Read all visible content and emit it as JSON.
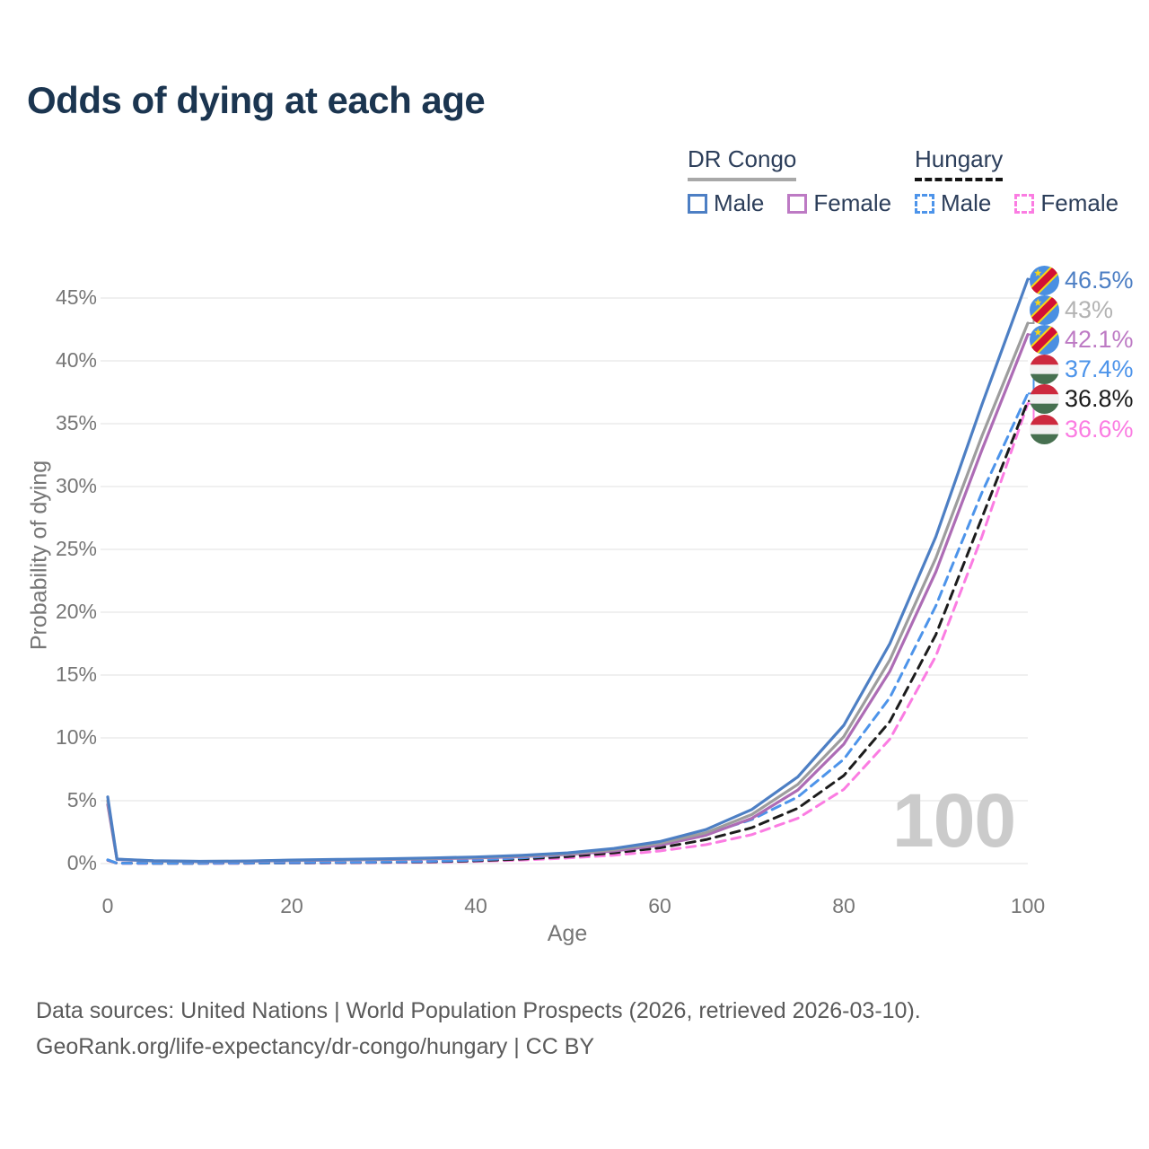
{
  "title": "Odds of dying at each age",
  "colors": {
    "title": "#1b3550",
    "legend_text": "#2c3e5a",
    "axis_text": "#767676",
    "gridline": "#ececec",
    "watermark": "#cbcbcb",
    "footer_text": "#5a5a5a"
  },
  "legend": {
    "groups": [
      {
        "title": "DR Congo",
        "underline_color": "#a8a8a8",
        "underline_style": "solid",
        "items": [
          {
            "label": "Male",
            "color": "#4d7fc4",
            "dashed": false
          },
          {
            "label": "Female",
            "color": "#bd7ac4",
            "dashed": false
          }
        ]
      },
      {
        "title": "Hungary",
        "underline_color": "#141414",
        "underline_style": "dashed",
        "items": [
          {
            "label": "Male",
            "color": "#4d94ea",
            "dashed": true
          },
          {
            "label": "Female",
            "color": "#fb7ce2",
            "dashed": true
          }
        ]
      }
    ]
  },
  "chart_data": {
    "type": "line",
    "title": "Odds of dying at each age",
    "xlabel": "Age",
    "ylabel": "Probability of dying",
    "xlim": [
      0,
      100
    ],
    "ylim": [
      0,
      47
    ],
    "grid": true,
    "legend_position": "top-right",
    "x_ticks": [
      0,
      20,
      40,
      60,
      80,
      100
    ],
    "y_ticks": [
      0,
      5,
      10,
      15,
      20,
      25,
      30,
      35,
      40,
      45
    ],
    "y_tick_suffix": "%",
    "x": [
      0,
      1,
      5,
      10,
      15,
      20,
      25,
      30,
      35,
      40,
      45,
      50,
      55,
      60,
      65,
      70,
      75,
      80,
      85,
      90,
      95,
      100
    ],
    "series": [
      {
        "id": "dr-congo-male",
        "name": "DR Congo Male",
        "flag": "dr-congo",
        "color": "#4d7fc4",
        "label_color": "#4d7fc4",
        "dashed": false,
        "end_label": "46.5%",
        "values": [
          5.3,
          0.35,
          0.22,
          0.18,
          0.2,
          0.28,
          0.33,
          0.38,
          0.44,
          0.52,
          0.65,
          0.85,
          1.2,
          1.75,
          2.7,
          4.3,
          6.9,
          11.0,
          17.5,
          26.0,
          36.5,
          46.5
        ]
      },
      {
        "id": "dr-congo-both",
        "name": "DR Congo Both sexes",
        "flag": "dr-congo",
        "color": "#9d9d9d",
        "label_color": "#b3b3b3",
        "dashed": false,
        "end_label": "43%",
        "values": [
          5.0,
          0.34,
          0.21,
          0.17,
          0.19,
          0.26,
          0.3,
          0.35,
          0.41,
          0.48,
          0.6,
          0.78,
          1.1,
          1.6,
          2.45,
          3.9,
          6.3,
          10.1,
          16.2,
          24.3,
          34.0,
          43.0
        ]
      },
      {
        "id": "dr-congo-female",
        "name": "DR Congo Female",
        "flag": "dr-congo",
        "color": "#ad6cb5",
        "label_color": "#bd7ac4",
        "dashed": false,
        "end_label": "42.1%",
        "values": [
          4.7,
          0.32,
          0.2,
          0.16,
          0.18,
          0.24,
          0.28,
          0.32,
          0.37,
          0.44,
          0.55,
          0.72,
          1.0,
          1.45,
          2.25,
          3.6,
          5.85,
          9.5,
          15.3,
          23.2,
          32.9,
          42.1
        ]
      },
      {
        "id": "hungary-male",
        "name": "Hungary Male",
        "flag": "hungary",
        "color": "#4d94ea",
        "label_color": "#4d94ea",
        "dashed": true,
        "end_label": "37.4%",
        "values": [
          0.3,
          0.03,
          0.02,
          0.02,
          0.04,
          0.07,
          0.09,
          0.12,
          0.18,
          0.28,
          0.45,
          0.7,
          1.05,
          1.55,
          2.35,
          3.5,
          5.3,
          8.3,
          13.2,
          20.5,
          29.5,
          37.4
        ]
      },
      {
        "id": "hungary-both",
        "name": "Hungary Both sexes",
        "flag": "hungary",
        "color": "#1c1c1c",
        "label_color": "#1c1c1c",
        "dashed": true,
        "end_label": "36.8%",
        "values": [
          0.28,
          0.03,
          0.02,
          0.02,
          0.03,
          0.05,
          0.07,
          0.1,
          0.14,
          0.22,
          0.36,
          0.56,
          0.85,
          1.25,
          1.9,
          2.85,
          4.4,
          7.0,
          11.3,
          18.2,
          27.5,
          36.8
        ]
      },
      {
        "id": "hungary-female",
        "name": "Hungary Female",
        "flag": "hungary",
        "color": "#fb7ce2",
        "label_color": "#fb7ce2",
        "dashed": true,
        "end_label": "36.6%",
        "values": [
          0.26,
          0.02,
          0.01,
          0.01,
          0.02,
          0.04,
          0.05,
          0.08,
          0.11,
          0.17,
          0.28,
          0.44,
          0.66,
          1.0,
          1.5,
          2.3,
          3.6,
          5.9,
          9.9,
          16.5,
          26.0,
          36.6
        ]
      }
    ]
  },
  "watermark": "100",
  "footer": {
    "line1": "Data sources: United Nations | World Population Prospects (2026, retrieved 2026-03-10).",
    "line2": "GeoRank.org/life-expectancy/dr-congo/hungary | CC BY"
  }
}
